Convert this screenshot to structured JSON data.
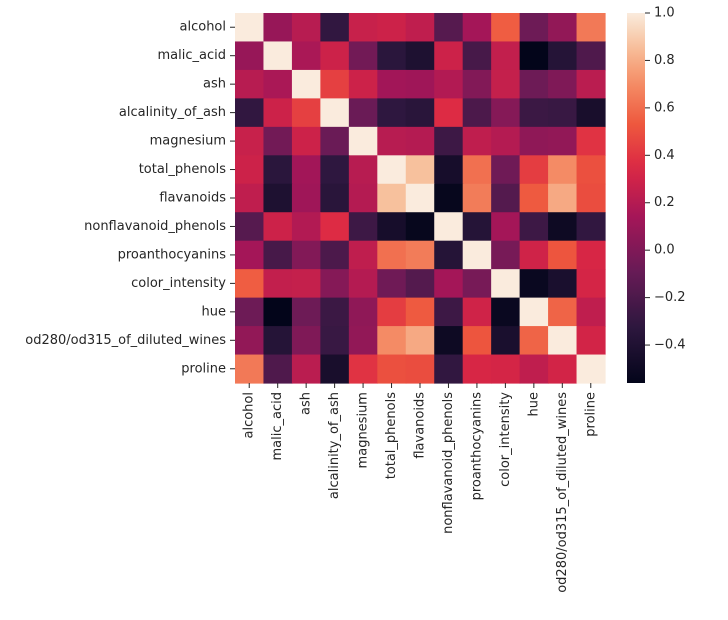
{
  "chart_data": {
    "type": "heatmap",
    "title": "",
    "xlabel": "",
    "ylabel": "",
    "labels": [
      "alcohol",
      "malic_acid",
      "ash",
      "alcalinity_of_ash",
      "magnesium",
      "total_phenols",
      "flavanoids",
      "nonflavanoid_phenols",
      "proanthocyanins",
      "color_intensity",
      "hue",
      "od280/od315_of_diluted_wines",
      "proline"
    ],
    "matrix": [
      [
        1.0,
        0.09,
        0.21,
        -0.31,
        0.27,
        0.29,
        0.24,
        -0.16,
        0.14,
        0.55,
        -0.07,
        0.07,
        0.64
      ],
      [
        0.09,
        1.0,
        0.16,
        0.29,
        -0.05,
        -0.34,
        -0.41,
        0.29,
        -0.22,
        0.25,
        -0.56,
        -0.37,
        -0.19
      ],
      [
        0.21,
        0.16,
        1.0,
        0.44,
        0.29,
        0.13,
        0.12,
        0.19,
        0.01,
        0.26,
        -0.07,
        0.0,
        0.22
      ],
      [
        -0.31,
        0.29,
        0.44,
        1.0,
        -0.08,
        -0.32,
        -0.35,
        0.36,
        -0.2,
        0.02,
        -0.27,
        -0.28,
        -0.44
      ],
      [
        0.27,
        -0.05,
        0.29,
        -0.08,
        1.0,
        0.21,
        0.2,
        -0.26,
        0.24,
        0.2,
        0.06,
        0.07,
        0.39
      ],
      [
        0.29,
        -0.34,
        0.13,
        -0.32,
        0.21,
        1.0,
        0.86,
        -0.45,
        0.61,
        -0.06,
        0.43,
        0.7,
        0.5
      ],
      [
        0.24,
        -0.41,
        0.12,
        -0.35,
        0.2,
        0.86,
        1.0,
        -0.54,
        0.65,
        -0.17,
        0.54,
        0.79,
        0.49
      ],
      [
        -0.16,
        0.29,
        0.19,
        0.36,
        -0.26,
        -0.45,
        -0.54,
        1.0,
        -0.37,
        0.14,
        -0.26,
        -0.5,
        -0.31
      ],
      [
        0.14,
        -0.22,
        0.01,
        -0.2,
        0.24,
        0.61,
        0.65,
        -0.37,
        1.0,
        -0.03,
        0.3,
        0.52,
        0.33
      ],
      [
        0.55,
        0.25,
        0.26,
        0.02,
        0.2,
        -0.06,
        -0.17,
        0.14,
        -0.03,
        1.0,
        -0.52,
        -0.43,
        0.32
      ],
      [
        -0.07,
        -0.56,
        -0.07,
        -0.27,
        0.06,
        0.43,
        0.54,
        -0.26,
        0.3,
        -0.52,
        1.0,
        0.57,
        0.24
      ],
      [
        0.07,
        -0.37,
        0.0,
        -0.28,
        0.07,
        0.7,
        0.79,
        -0.5,
        0.52,
        -0.43,
        0.57,
        1.0,
        0.31
      ],
      [
        0.64,
        -0.19,
        0.22,
        -0.44,
        0.39,
        0.5,
        0.49,
        -0.31,
        0.33,
        0.32,
        0.24,
        0.31,
        1.0
      ]
    ],
    "colorbar": {
      "min": -0.56,
      "max": 1.0,
      "ticks": [
        1.0,
        0.8,
        0.6,
        0.4,
        0.2,
        0.0,
        -0.2,
        -0.4
      ],
      "tick_labels": [
        "1.0",
        "0.8",
        "0.6",
        "0.4",
        "0.2",
        "0.0",
        "−0.2",
        "−0.4"
      ]
    },
    "colormap": "rocket",
    "grid": false,
    "legend": "colorbar-right"
  }
}
